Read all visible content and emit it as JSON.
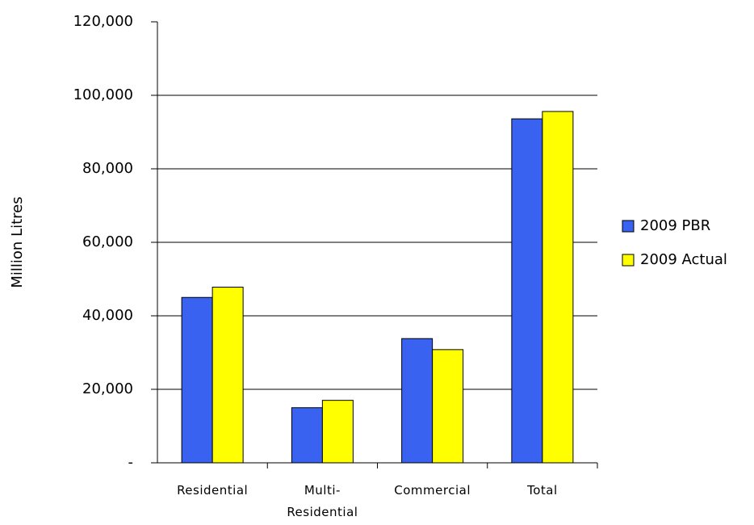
{
  "chart_data": {
    "type": "bar",
    "y_label": "Million Litres",
    "categories": [
      "Residential",
      "Multi-\nResidential",
      "Commercial",
      "Total"
    ],
    "series": [
      {
        "name": "2009 PBR",
        "color": "#3a62f0",
        "values": [
          45000,
          15000,
          33800,
          93600
        ]
      },
      {
        "name": "2009 Actual",
        "color": "#ffff00",
        "values": [
          47800,
          17000,
          30800,
          95600
        ]
      }
    ],
    "ylim": [
      0,
      120000
    ],
    "yticks": [
      {
        "value": 0,
        "label": "-"
      },
      {
        "value": 20000,
        "label": "20,000"
      },
      {
        "value": 40000,
        "label": "40,000"
      },
      {
        "value": 60000,
        "label": "60,000"
      },
      {
        "value": 80000,
        "label": "80,000"
      },
      {
        "value": 100000,
        "label": "100,000"
      },
      {
        "value": 120000,
        "label": "120,000"
      }
    ],
    "grid": true,
    "legend": "right"
  }
}
